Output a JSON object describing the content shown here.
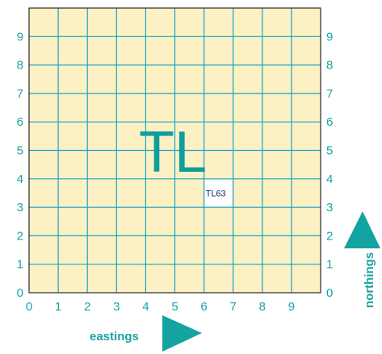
{
  "grid": {
    "background_color": "#fdf1c4",
    "line_color": "#1aa3c8",
    "border_color": "#2a2a2a",
    "cells_x": 10,
    "cells_y": 10
  },
  "eastings_ticks": [
    "0",
    "1",
    "2",
    "3",
    "4",
    "5",
    "6",
    "7",
    "8",
    "9"
  ],
  "northings_ticks_left": [
    "0",
    "1",
    "2",
    "3",
    "4",
    "5",
    "6",
    "7",
    "8",
    "9"
  ],
  "northings_ticks_right": [
    "0",
    "1",
    "2",
    "3",
    "4",
    "5",
    "6",
    "7",
    "8",
    "9"
  ],
  "square_letters": "TL",
  "reference_label": "TL63",
  "reference_cell": {
    "easting": 6,
    "northing": 3
  },
  "axis_labels": {
    "eastings": "eastings",
    "northings": "northings"
  },
  "colors": {
    "accent": "#1aa3a3",
    "letters": "#0e9e9c",
    "ref_text": "#1a2a6c",
    "arrow": "#13a3a0"
  },
  "icons": {
    "eastings_arrow": "triangle-right-icon",
    "northings_arrow": "triangle-up-icon"
  }
}
